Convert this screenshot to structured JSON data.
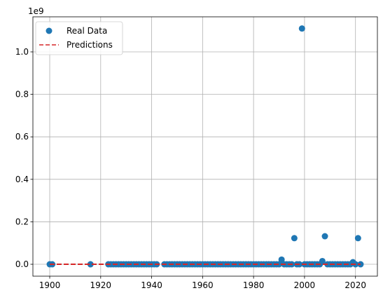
{
  "chart_data": {
    "type": "scatter",
    "offset_label": "1e9",
    "xlim": [
      1893.4,
      2028.6
    ],
    "ylim": [
      -0.056,
      1.165
    ],
    "xticks": [
      1900,
      1920,
      1940,
      1960,
      1980,
      2000,
      2020
    ],
    "yticks": [
      0.0,
      0.2,
      0.4,
      0.6,
      0.8,
      1.0
    ],
    "ytick_labels": [
      "0.0",
      "0.2",
      "0.4",
      "0.6",
      "0.8",
      "1.0"
    ],
    "grid": true,
    "legend_position": "top-left",
    "scatter_color": "#1f77b4",
    "line_color": "#d62728",
    "series": [
      {
        "name": "Real Data",
        "kind": "scatter",
        "x": [
          1900,
          1901,
          1916,
          1923,
          1924,
          1925,
          1926,
          1927,
          1928,
          1929,
          1930,
          1931,
          1932,
          1933,
          1934,
          1935,
          1936,
          1937,
          1938,
          1939,
          1940,
          1941,
          1942,
          1945,
          1946,
          1947,
          1948,
          1949,
          1950,
          1951,
          1952,
          1953,
          1954,
          1955,
          1956,
          1957,
          1958,
          1959,
          1960,
          1961,
          1962,
          1963,
          1964,
          1965,
          1966,
          1967,
          1968,
          1969,
          1970,
          1971,
          1972,
          1973,
          1974,
          1975,
          1976,
          1977,
          1978,
          1979,
          1980,
          1981,
          1982,
          1983,
          1984,
          1985,
          1986,
          1987,
          1988,
          1989,
          1990,
          1991,
          1992,
          1993,
          1994,
          1995,
          1996,
          1997,
          1998,
          1999,
          2000,
          2001,
          2002,
          2003,
          2004,
          2005,
          2006,
          2007,
          2008,
          2009,
          2010,
          2011,
          2012,
          2013,
          2014,
          2015,
          2016,
          2017,
          2018,
          2019,
          2020,
          2021,
          2022
        ],
        "y": [
          0,
          0,
          0,
          0,
          0,
          0,
          0,
          0,
          0,
          0,
          0,
          0,
          0,
          0,
          0,
          0,
          0,
          0,
          0,
          0,
          0,
          0,
          0,
          0,
          0,
          0,
          0,
          0,
          0,
          0,
          0,
          0,
          0,
          0,
          0,
          0,
          0,
          0,
          0,
          0,
          0,
          0,
          0,
          0,
          0,
          0,
          0,
          0,
          0,
          0,
          0,
          0,
          0,
          0,
          0,
          0,
          0,
          0,
          0,
          0,
          0,
          0,
          0,
          0,
          0,
          0,
          0,
          0,
          0,
          0.022,
          0,
          0,
          0,
          0,
          0.123,
          0,
          0,
          1.11,
          0,
          0,
          0,
          0,
          0,
          0,
          0,
          0.015,
          0.132,
          0,
          0,
          0,
          0,
          0,
          0,
          0,
          0,
          0,
          0,
          0.01,
          0,
          0.123,
          0
        ]
      },
      {
        "name": "Predictions",
        "kind": "line",
        "x": [
          1900,
          2022
        ],
        "y": [
          0,
          0
        ]
      }
    ]
  }
}
